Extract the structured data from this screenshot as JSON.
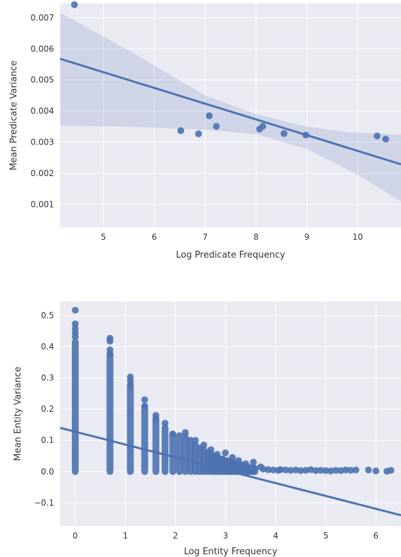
{
  "chart_data": [
    {
      "type": "scatter",
      "xlabel": "Log Predicate Frequency",
      "ylabel": "Mean Predicate Variance",
      "xlim": [
        4.15,
        10.85
      ],
      "ylim": [
        0.00026,
        0.00746
      ],
      "xticks": [
        5,
        6,
        7,
        8,
        9,
        10
      ],
      "yticks": [
        0.001,
        0.002,
        0.003,
        0.004,
        0.005,
        0.006,
        0.007
      ],
      "ytick_labels": [
        "0.001",
        "0.002",
        "0.003",
        "0.004",
        "0.005",
        "0.006",
        "0.007"
      ],
      "grid": true,
      "points": [
        [
          4.43,
          0.00742
        ],
        [
          6.52,
          0.00337
        ],
        [
          6.87,
          0.00327
        ],
        [
          7.08,
          0.00385
        ],
        [
          7.22,
          0.00351
        ],
        [
          8.07,
          0.00342
        ],
        [
          8.13,
          0.00351
        ],
        [
          8.55,
          0.00328
        ],
        [
          8.98,
          0.00323
        ],
        [
          10.38,
          0.0032
        ],
        [
          10.55,
          0.0031
        ]
      ],
      "regression": {
        "line": [
          [
            4.15,
            0.00568
          ],
          [
            10.85,
            0.00229
          ]
        ],
        "ci_upper": [
          [
            4.15,
            0.00716
          ],
          [
            5.5,
            0.00595
          ],
          [
            7.0,
            0.0045
          ],
          [
            8.0,
            0.0039
          ],
          [
            9.0,
            0.0035
          ],
          [
            9.8,
            0.00332
          ],
          [
            10.85,
            0.00325
          ]
        ],
        "ci_lower": [
          [
            4.15,
            0.00353
          ],
          [
            5.5,
            0.0035
          ],
          [
            7.0,
            0.0034
          ],
          [
            8.0,
            0.00326
          ],
          [
            9.0,
            0.00278
          ],
          [
            10.0,
            0.00195
          ],
          [
            10.85,
            0.0011
          ]
        ]
      }
    },
    {
      "type": "scatter",
      "xlabel": "Log Entity Frequency",
      "ylabel": "Mean Entity Variance",
      "xlim": [
        -0.3,
        6.5
      ],
      "ylim": [
        -0.175,
        0.545
      ],
      "xticks": [
        0,
        1,
        2,
        3,
        4,
        5,
        6
      ],
      "xtick_labels": [
        "0",
        "1",
        "2",
        "3",
        "4",
        "5",
        "6"
      ],
      "yticks": [
        -0.1,
        0.0,
        0.1,
        0.2,
        0.3,
        0.4,
        0.5
      ],
      "ytick_labels": [
        "−0.1",
        "0.0",
        "0.1",
        "0.2",
        "0.3",
        "0.4",
        "0.5"
      ],
      "grid": true,
      "columns": [
        [
          0.0,
          0.0,
          0.415
        ],
        [
          0.693,
          0.0,
          0.372
        ],
        [
          1.099,
          0.0,
          0.27
        ],
        [
          1.386,
          0.0,
          0.205
        ],
        [
          1.609,
          0.0,
          0.165
        ],
        [
          1.792,
          0.0,
          0.14
        ],
        [
          1.946,
          0.0,
          0.12
        ],
        [
          2.079,
          0.0,
          0.115
        ],
        [
          2.197,
          0.0,
          0.11
        ],
        [
          2.303,
          0.0,
          0.1
        ],
        [
          2.398,
          0.0,
          0.085
        ],
        [
          2.485,
          0.0,
          0.075
        ],
        [
          2.565,
          0.0,
          0.07
        ],
        [
          2.639,
          0.0,
          0.06
        ],
        [
          2.708,
          0.0,
          0.055
        ],
        [
          2.773,
          0.0,
          0.05
        ],
        [
          2.833,
          0.0,
          0.045
        ],
        [
          2.89,
          0.0,
          0.04
        ],
        [
          2.944,
          0.0,
          0.04
        ],
        [
          2.996,
          0.0,
          0.035
        ],
        [
          3.045,
          0.0,
          0.035
        ],
        [
          3.091,
          0.0,
          0.03
        ],
        [
          3.135,
          0.0,
          0.03
        ],
        [
          3.178,
          0.0,
          0.025
        ],
        [
          3.219,
          0.0,
          0.025
        ],
        [
          3.258,
          0.0,
          0.02
        ],
        [
          3.296,
          0.0,
          0.02
        ],
        [
          3.332,
          0.0,
          0.02
        ],
        [
          3.367,
          0.0,
          0.015
        ],
        [
          3.401,
          0.0,
          0.015
        ],
        [
          3.434,
          0.0,
          0.015
        ],
        [
          3.466,
          0.0,
          0.012
        ],
        [
          3.497,
          0.0,
          0.012
        ],
        [
          3.526,
          0.0,
          0.01
        ],
        [
          3.555,
          0.0,
          0.01
        ],
        [
          3.584,
          0.0,
          0.01
        ]
      ],
      "points": [
        [
          0.0,
          0.517
        ],
        [
          0.0,
          0.473
        ],
        [
          0.0,
          0.458
        ],
        [
          0.0,
          0.445
        ],
        [
          0.0,
          0.432
        ],
        [
          0.693,
          0.427
        ],
        [
          0.693,
          0.418
        ],
        [
          0.693,
          0.39
        ],
        [
          0.693,
          0.377
        ],
        [
          1.099,
          0.303
        ],
        [
          1.099,
          0.29
        ],
        [
          1.099,
          0.278
        ],
        [
          1.386,
          0.23
        ],
        [
          1.386,
          0.21
        ],
        [
          1.609,
          0.18
        ],
        [
          1.609,
          0.17
        ],
        [
          1.792,
          0.155
        ],
        [
          1.946,
          0.12
        ],
        [
          2.197,
          0.125
        ],
        [
          2.398,
          0.1
        ],
        [
          2.565,
          0.085
        ],
        [
          2.708,
          0.07
        ],
        [
          2.833,
          0.055
        ],
        [
          2.996,
          0.06
        ],
        [
          3.135,
          0.045
        ],
        [
          3.258,
          0.035
        ],
        [
          3.401,
          0.025
        ],
        [
          3.555,
          0.03
        ],
        [
          3.7,
          0.015
        ],
        [
          3.75,
          0.008
        ],
        [
          3.85,
          0.006
        ],
        [
          3.95,
          0.005
        ],
        [
          4.05,
          0.004
        ],
        [
          4.1,
          0.006
        ],
        [
          4.2,
          0.005
        ],
        [
          4.3,
          0.004
        ],
        [
          4.4,
          0.005
        ],
        [
          4.5,
          0.003
        ],
        [
          4.6,
          0.004
        ],
        [
          4.7,
          0.006
        ],
        [
          4.8,
          0.003
        ],
        [
          4.9,
          0.004
        ],
        [
          5.0,
          0.003
        ],
        [
          5.1,
          0.002
        ],
        [
          5.2,
          0.004
        ],
        [
          5.3,
          0.003
        ],
        [
          5.4,
          0.005
        ],
        [
          5.5,
          0.004
        ],
        [
          5.6,
          0.005
        ],
        [
          5.85,
          0.005
        ],
        [
          6.0,
          0.002
        ],
        [
          6.22,
          0.001
        ],
        [
          6.3,
          0.004
        ]
      ],
      "regression": {
        "line": [
          [
            -0.3,
            0.14
          ],
          [
            6.5,
            -0.14
          ]
        ]
      }
    }
  ],
  "style": {
    "panel_bg": "#eaeaf2",
    "grid_color": "#ffffff",
    "point_color": "#4c72b0",
    "line_color": "#4c72b0",
    "ci_color": "#4c72b0"
  }
}
